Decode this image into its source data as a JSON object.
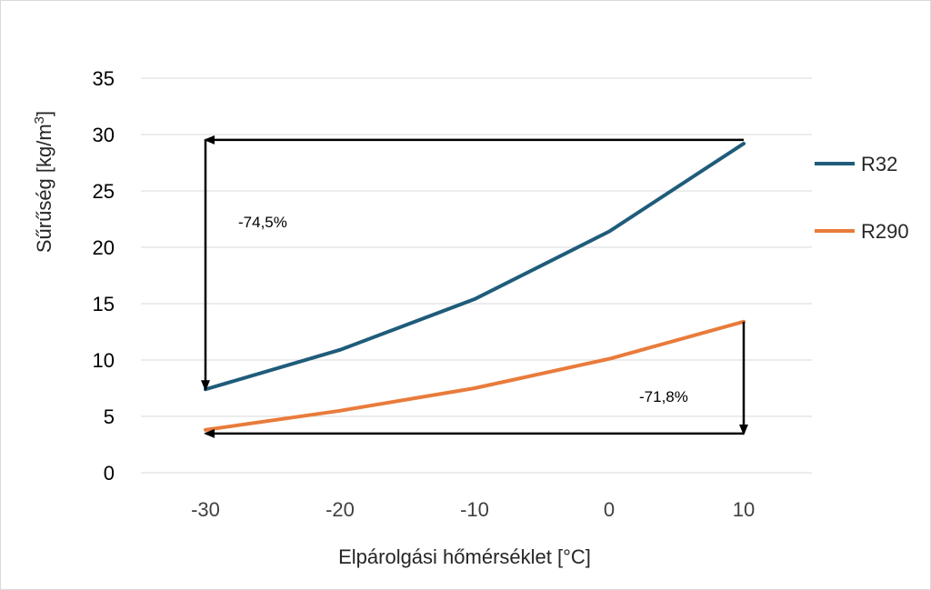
{
  "chart_data": {
    "type": "line",
    "x": [
      -30,
      -20,
      -10,
      0,
      10
    ],
    "x_tick_labels": [
      "-30",
      "-20",
      "-10",
      "0",
      "10"
    ],
    "y_tick_labels": [
      "0",
      "5",
      "10",
      "15",
      "20",
      "25",
      "30",
      "35"
    ],
    "ylim": [
      0,
      35
    ],
    "xlabel": "Elpárolgási hőmérséklet [°C]",
    "ylabel_main": "Sűrűség [kg/m",
    "ylabel_sup": "3",
    "ylabel_close": "]",
    "grid": true,
    "legend_position": "right",
    "series": [
      {
        "name": "R32",
        "color": "#1f5c7a",
        "values": [
          7.4,
          10.9,
          15.4,
          21.4,
          29.2
        ]
      },
      {
        "name": "R290",
        "color": "#e97b3b",
        "values": [
          3.8,
          5.5,
          7.5,
          10.1,
          13.4
        ]
      }
    ],
    "annotations": [
      {
        "text": "-74,5%"
      },
      {
        "text": "-71,8%"
      }
    ]
  }
}
